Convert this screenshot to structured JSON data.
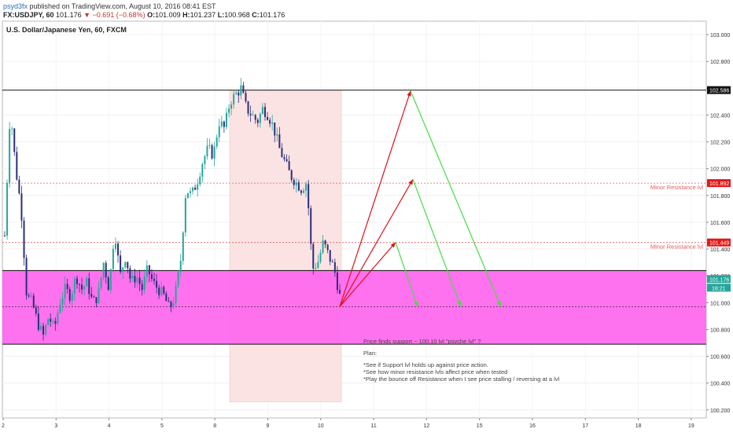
{
  "header": {
    "author": "psyd3fx",
    "published": " published on TradingView.com, August 10, 2016 08:41 EST",
    "symbol": "FX:USDJPY, 60",
    "last": "101.176",
    "change": "▼ −0.691 (−0.68%)",
    "o_label": "O:",
    "o_val": "101.009",
    "h_label": "H:",
    "h_val": "101.237",
    "l_label": "L:",
    "l_val": "100.968",
    "c_label": "C:",
    "c_val": "101.176"
  },
  "note": {
    "line1": "Price finds support ~ 100.10 lvl  \"psyche lvl\" ?",
    "line2": "Plan:",
    "line3": "*See if Support lvl holds up against price action.",
    "line4": "*See how minor resistance lvls affect price when tested",
    "line5": "*Play the bounce off Resistance when I see price stalling / reversing at a lvl"
  },
  "colors": {
    "up": "#26a69a",
    "down": "#2b2e7a",
    "zone": "#ff66ee",
    "pinkbox": "#fbe3e3",
    "red": "#e0101a",
    "green": "#44dd44",
    "minor": "#e06060"
  },
  "chart_data": {
    "type": "candlestick",
    "title": "U.S. Dollar/Japanese Yen, 60, FXCM",
    "y_range": [
      100.14,
      103.1
    ],
    "y_ticks": [
      100.2,
      100.4,
      100.6,
      100.8,
      101.0,
      101.2,
      101.4,
      101.6,
      101.8,
      102.0,
      102.2,
      102.4,
      102.6,
      102.8,
      103.0
    ],
    "y_tick_labels": [
      "100.200",
      "100.400",
      "100.600",
      "100.800",
      "101.000",
      "101.200",
      "101.400",
      "101.600",
      "101.800",
      "102.000",
      "102.200",
      "102.400",
      "102.600",
      "102.800",
      "103.000"
    ],
    "x_ticks": [
      "2",
      "3",
      "4",
      "5",
      "8",
      "9",
      "10",
      "11",
      "12",
      "15",
      "16",
      "17",
      "18",
      "19"
    ],
    "price_path": [
      101.5,
      102.45,
      102.0,
      101.7,
      101.05,
      101.0,
      100.85,
      100.75,
      100.9,
      100.8,
      101.0,
      101.1,
      101.05,
      101.2,
      101.1,
      101.15,
      101.0,
      101.05,
      101.3,
      101.1,
      101.55,
      101.2,
      101.35,
      101.15,
      101.2,
      101.1,
      101.25,
      101.15,
      101.1,
      101.05,
      100.95,
      101.05,
      101.3,
      101.85,
      101.8,
      101.9,
      102.05,
      102.15,
      102.1,
      102.35,
      102.3,
      102.5,
      102.55,
      102.6,
      102.45,
      102.4,
      102.35,
      102.45,
      102.4,
      102.3,
      102.15,
      102.05,
      101.95,
      101.9,
      101.85,
      101.9,
      101.25,
      101.3,
      101.45,
      101.35,
      101.25,
      101.05
    ],
    "zones": [
      {
        "label": "",
        "from": 100.69,
        "to": 101.24,
        "color": "#ff66ee"
      }
    ],
    "levels": [
      {
        "value": 102.586,
        "tag": "102.586",
        "style": "solid",
        "label": ""
      },
      {
        "value": 101.892,
        "tag": "101.892",
        "style": "dotted-red",
        "label": "Minor Resistance lvl"
      },
      {
        "value": 101.449,
        "tag": "101.449",
        "style": "dotted-red",
        "label": "Minor Resistance lvl"
      },
      {
        "value": 100.97,
        "tag": "",
        "style": "dotted",
        "label": ""
      }
    ],
    "price_tag": "101.176",
    "time_tag": "18:21",
    "projections": {
      "origin": {
        "x": 10.4,
        "y": 100.97
      },
      "red": [
        {
          "x": 11.4,
          "y": 101.45
        },
        {
          "x": 11.8,
          "y": 101.92
        },
        {
          "x": 11.8,
          "y": 102.58
        }
      ],
      "green_from": [
        {
          "x": 11.4,
          "y": 101.45
        },
        {
          "x": 11.8,
          "y": 101.92
        },
        {
          "x": 11.8,
          "y": 102.58
        }
      ],
      "green_to": [
        {
          "x": 11.78,
          "y": 100.97
        },
        {
          "x": 12.5,
          "y": 100.97
        },
        {
          "x": 13.4,
          "y": 100.97
        }
      ]
    }
  }
}
